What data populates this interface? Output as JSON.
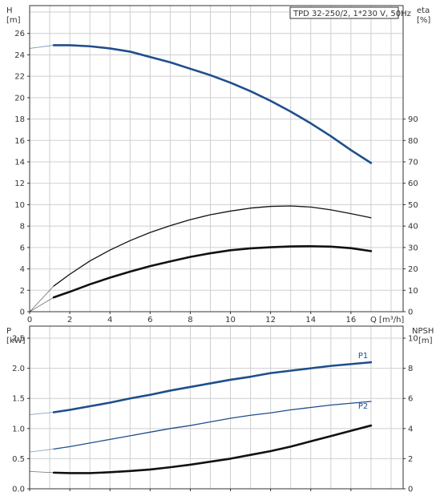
{
  "chart_data": [
    {
      "type": "line",
      "panel": "head-efficiency",
      "legend_text": "TPD 32-250/2, 1*230 V, 50Hz",
      "left_axis": {
        "label_line1": "H",
        "label_line2": "[m]",
        "ylim": [
          0,
          28.6
        ],
        "ticks": [
          0,
          2,
          4,
          6,
          8,
          10,
          12,
          14,
          16,
          18,
          20,
          22,
          24,
          26
        ]
      },
      "right_axis": {
        "label_line1": "eta",
        "label_line2": "[%]",
        "ylim": [
          0,
          143
        ],
        "ticks": [
          0,
          10,
          20,
          30,
          40,
          50,
          60,
          70,
          80,
          90
        ]
      },
      "x_axis": {
        "label": "Q [m³/h]",
        "xlim": [
          0,
          18.6
        ],
        "ticks": [
          0,
          2,
          4,
          6,
          8,
          10,
          12,
          14,
          16
        ]
      },
      "grid": true,
      "series": [
        {
          "name": "",
          "axis": "left",
          "color": "#1f4e8c",
          "stroke_width": 2.6,
          "x": [
            0,
            1.2,
            2,
            3,
            4,
            5,
            6,
            7,
            8,
            9,
            10,
            11,
            12,
            13,
            14,
            15,
            16,
            17
          ],
          "y": [
            24.6,
            24.9,
            24.9,
            24.8,
            24.6,
            24.3,
            23.8,
            23.3,
            22.7,
            22.1,
            21.4,
            20.6,
            19.7,
            18.7,
            17.6,
            16.4,
            15.1,
            13.9
          ],
          "dashed_until_x": 1.2
        },
        {
          "name": "",
          "axis": "right",
          "color": "#111111",
          "stroke_width": 1.3,
          "x": [
            0,
            1.2,
            2,
            3,
            4,
            5,
            6,
            7,
            8,
            9,
            10,
            11,
            12,
            13,
            14,
            15,
            16,
            17
          ],
          "y": [
            0,
            12,
            17.5,
            23.7,
            28.8,
            33.2,
            37,
            40.2,
            43,
            45.3,
            47,
            48.4,
            49.2,
            49.4,
            48.9,
            47.6,
            45.8,
            43.9
          ],
          "dashed_until_x": 1.2
        },
        {
          "name": "",
          "axis": "right",
          "color": "#111111",
          "stroke_width": 2.6,
          "x": [
            0,
            1.2,
            2,
            3,
            4,
            5,
            6,
            7,
            8,
            9,
            10,
            11,
            12,
            13,
            14,
            15,
            16,
            17
          ],
          "y": [
            0,
            6.7,
            9.3,
            12.8,
            15.9,
            18.7,
            21.3,
            23.5,
            25.6,
            27.3,
            28.7,
            29.6,
            30.1,
            30.5,
            30.6,
            30.4,
            29.7,
            28.3
          ],
          "dashed_until_x": 1.2
        }
      ]
    },
    {
      "type": "line",
      "panel": "power-npsh",
      "left_axis": {
        "label_line1": "P",
        "label_line2": "[kW]",
        "ylim": [
          0,
          2.7
        ],
        "ticks": [
          "0.0",
          "0.5",
          "1.0",
          "1.5",
          "2.0",
          "2.5"
        ]
      },
      "right_axis": {
        "label_line1": "NPSH",
        "label_line2": "[m]",
        "ylim": [
          0,
          10.8
        ],
        "ticks": [
          0,
          2,
          4,
          6,
          8,
          10
        ]
      },
      "x_axis": {
        "xlim": [
          0,
          18.6
        ],
        "ticks": [
          0,
          2,
          4,
          6,
          8,
          10,
          12,
          14,
          16
        ]
      },
      "grid": true,
      "series": [
        {
          "name": "P1",
          "axis": "left",
          "color": "#1f4e8c",
          "stroke_width": 2.6,
          "label_color": "#1f4e8c",
          "x": [
            0,
            1.2,
            2,
            3,
            4,
            5,
            6,
            7,
            8,
            9,
            10,
            11,
            12,
            13,
            14,
            15,
            16,
            17
          ],
          "y": [
            1.23,
            1.27,
            1.31,
            1.37,
            1.43,
            1.5,
            1.56,
            1.63,
            1.69,
            1.75,
            1.81,
            1.86,
            1.92,
            1.96,
            2.0,
            2.04,
            2.07,
            2.1
          ],
          "dashed_until_x": 1.2
        },
        {
          "name": "P2",
          "axis": "left",
          "color": "#1f4e8c",
          "stroke_width": 1.3,
          "label_color": "#1f4e8c",
          "x": [
            0,
            1.2,
            2,
            3,
            4,
            5,
            6,
            7,
            8,
            9,
            10,
            11,
            12,
            13,
            14,
            15,
            16,
            17
          ],
          "y": [
            0.61,
            0.66,
            0.7,
            0.76,
            0.82,
            0.88,
            0.94,
            1.0,
            1.05,
            1.11,
            1.17,
            1.22,
            1.26,
            1.31,
            1.35,
            1.39,
            1.42,
            1.45
          ],
          "dashed_until_x": 1.2
        },
        {
          "name": "",
          "axis": "right",
          "color": "#111111",
          "stroke_width": 2.6,
          "x": [
            0,
            1.2,
            2,
            3,
            4,
            5,
            6,
            7,
            8,
            9,
            10,
            11,
            12,
            13,
            14,
            15,
            16,
            17
          ],
          "y": [
            1.15,
            1.07,
            1.04,
            1.04,
            1.1,
            1.18,
            1.28,
            1.43,
            1.6,
            1.8,
            2.0,
            2.25,
            2.5,
            2.8,
            3.15,
            3.5,
            3.85,
            4.2
          ],
          "dashed_until_x": 1.2
        }
      ]
    }
  ]
}
